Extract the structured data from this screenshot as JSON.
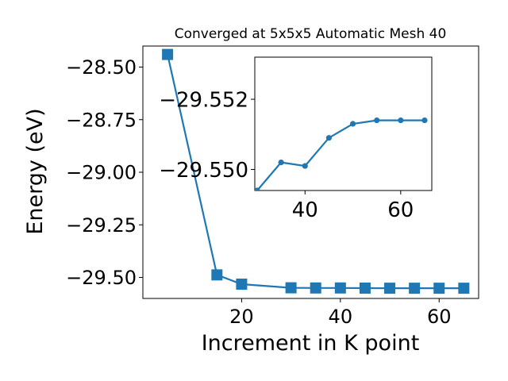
{
  "chart_data": [
    {
      "type": "line",
      "title": "Converged at 5x5x5 Automatic Mesh 40",
      "xlabel": "Increment in K point",
      "ylabel": "Energy (eV)",
      "xlim": [
        0,
        68
      ],
      "ylim": [
        -29.6,
        -28.4
      ],
      "xticks": [
        20,
        40,
        60
      ],
      "yticks": [
        -28.5,
        -28.75,
        -29.0,
        -29.25,
        -29.5
      ],
      "ytick_labels": [
        "−28.50",
        "−28.75",
        "−29.00",
        "−29.25",
        "−29.50"
      ],
      "xtick_labels": [
        "20",
        "40",
        "60"
      ],
      "grid": false,
      "marker": "square",
      "color": "#1f77b4",
      "series": [
        {
          "x": [
            5,
            15,
            20,
            30,
            35,
            40,
            45,
            50,
            55,
            60,
            65
          ],
          "y": [
            -28.44,
            -29.488,
            -29.532,
            -29.5494,
            -29.5502,
            -29.5501,
            -29.5509,
            -29.5513,
            -29.5514,
            -29.5514,
            -29.5514
          ]
        }
      ]
    },
    {
      "type": "line",
      "title": "",
      "xlabel": "",
      "ylabel": "",
      "xlim": [
        29.5,
        66.5
      ],
      "ylim": [
        -29.5494,
        -29.5532
      ],
      "xticks": [
        40,
        60
      ],
      "yticks": [
        -29.552,
        -29.55
      ],
      "ytick_labels": [
        "−29.552",
        "−29.550"
      ],
      "xtick_labels": [
        "40",
        "60"
      ],
      "grid": false,
      "marker": "circle",
      "color": "#1f77b4",
      "series": [
        {
          "x": [
            30,
            35,
            40,
            45,
            50,
            55,
            60,
            65
          ],
          "y": [
            -29.5494,
            -29.5502,
            -29.5501,
            -29.5509,
            -29.5513,
            -29.5514,
            -29.5514,
            -29.5514
          ]
        }
      ]
    }
  ]
}
